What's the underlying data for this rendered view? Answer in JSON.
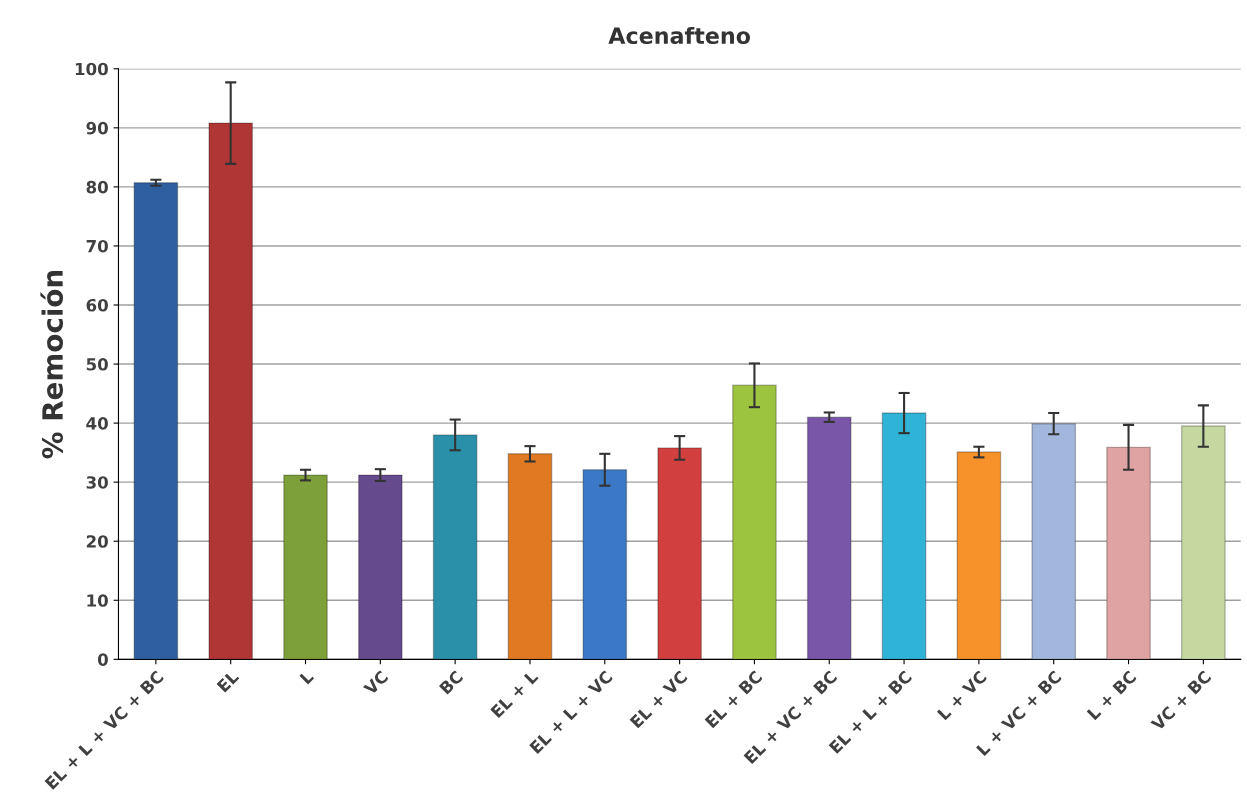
{
  "chart_data": {
    "type": "bar",
    "title": "Acenafteno",
    "ylabel": "% Remoción",
    "categories": [
      "EL + L + VC + BC",
      "EL",
      "L",
      "VC",
      "BC",
      "EL + L",
      "EL + L + VC",
      "EL + VC",
      "EL + BC",
      "EL + VC + BC",
      "EL + L + BC",
      "L + VC",
      "L + VC + BC",
      "L + BC",
      "VC + BC"
    ],
    "values": [
      80.7,
      90.8,
      31.2,
      31.2,
      38.0,
      34.8,
      32.1,
      35.8,
      46.4,
      41.0,
      41.7,
      35.1,
      39.9,
      35.9,
      39.5
    ],
    "errors": [
      0.5,
      6.9,
      0.9,
      1.0,
      2.6,
      1.3,
      2.7,
      2.0,
      3.7,
      0.8,
      3.4,
      0.9,
      1.8,
      3.8,
      3.5
    ],
    "colors": [
      "#2f5f9e",
      "#b03535",
      "#7ea03a",
      "#664a8e",
      "#2a8fa8",
      "#e07a22",
      "#3b78c6",
      "#d23f3f",
      "#9cc43f",
      "#7a56a8",
      "#2fb3d6",
      "#f7922a",
      "#a3b7dc",
      "#dfa3a3",
      "#c5d8a0"
    ],
    "ylim": [
      0,
      100
    ],
    "yticks": [
      0,
      10,
      20,
      30,
      40,
      50,
      60,
      70,
      80,
      90,
      100
    ],
    "grid": "y"
  }
}
